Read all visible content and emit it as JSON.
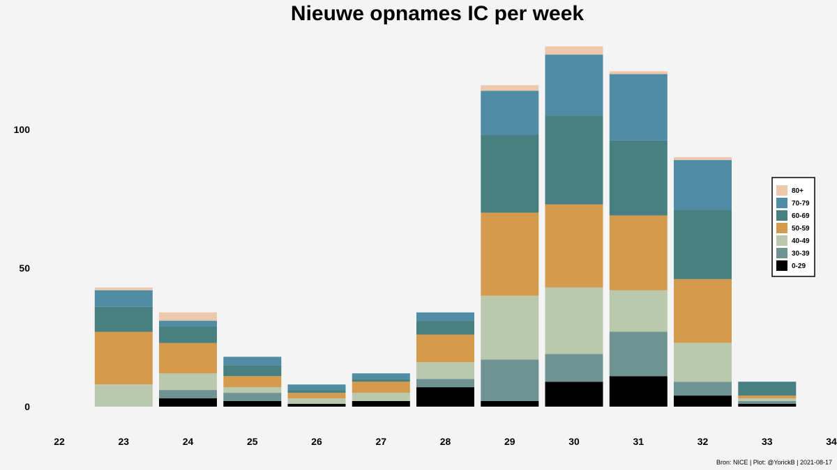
{
  "chart_data": {
    "type": "bar",
    "stacked": true,
    "title": "Nieuwe opnames IC per week",
    "caption": "Bron: NICE | Plot: @YorickB |  2021-08-17",
    "xlabel": "",
    "ylabel": "",
    "xlim": [
      22,
      34
    ],
    "ylim": [
      0,
      130
    ],
    "x_ticks": [
      "22",
      "23",
      "24",
      "25",
      "26",
      "27",
      "28",
      "29",
      "30",
      "31",
      "32",
      "33",
      "34"
    ],
    "y_ticks": [
      "0",
      "50",
      "100"
    ],
    "y_tick_values": [
      0,
      50,
      100
    ],
    "categories": [
      "23",
      "24",
      "25",
      "26",
      "27",
      "28",
      "29",
      "30",
      "31",
      "32",
      "33"
    ],
    "series": [
      {
        "name": "0-29",
        "color": "#000000",
        "values": [
          0,
          3,
          2,
          1,
          2,
          7,
          2,
          9,
          11,
          4,
          1
        ]
      },
      {
        "name": "30-39",
        "color": "#6f9393",
        "values": [
          0,
          3,
          3,
          0,
          0,
          3,
          15,
          10,
          16,
          5,
          1
        ]
      },
      {
        "name": "40-49",
        "color": "#bac8ad",
        "values": [
          8,
          6,
          2,
          2,
          3,
          6,
          23,
          24,
          15,
          14,
          1
        ]
      },
      {
        "name": "50-59",
        "color": "#d49b4f",
        "values": [
          19,
          11,
          4,
          2,
          4,
          10,
          30,
          30,
          27,
          23,
          1
        ]
      },
      {
        "name": "60-69",
        "color": "#487f80",
        "values": [
          9,
          6,
          4,
          1,
          1,
          5,
          28,
          32,
          27,
          25,
          5
        ]
      },
      {
        "name": "70-79",
        "color": "#508da5",
        "values": [
          6,
          2,
          3,
          2,
          2,
          3,
          16,
          22,
          24,
          18,
          0
        ]
      },
      {
        "name": "80+",
        "color": "#eec8ad",
        "values": [
          1,
          3,
          0,
          0,
          0,
          0,
          2,
          3,
          1,
          1,
          0
        ]
      }
    ],
    "legend": {
      "position": "right",
      "order": [
        "80+",
        "70-79",
        "60-69",
        "50-59",
        "40-49",
        "30-39",
        "0-29"
      ]
    }
  }
}
